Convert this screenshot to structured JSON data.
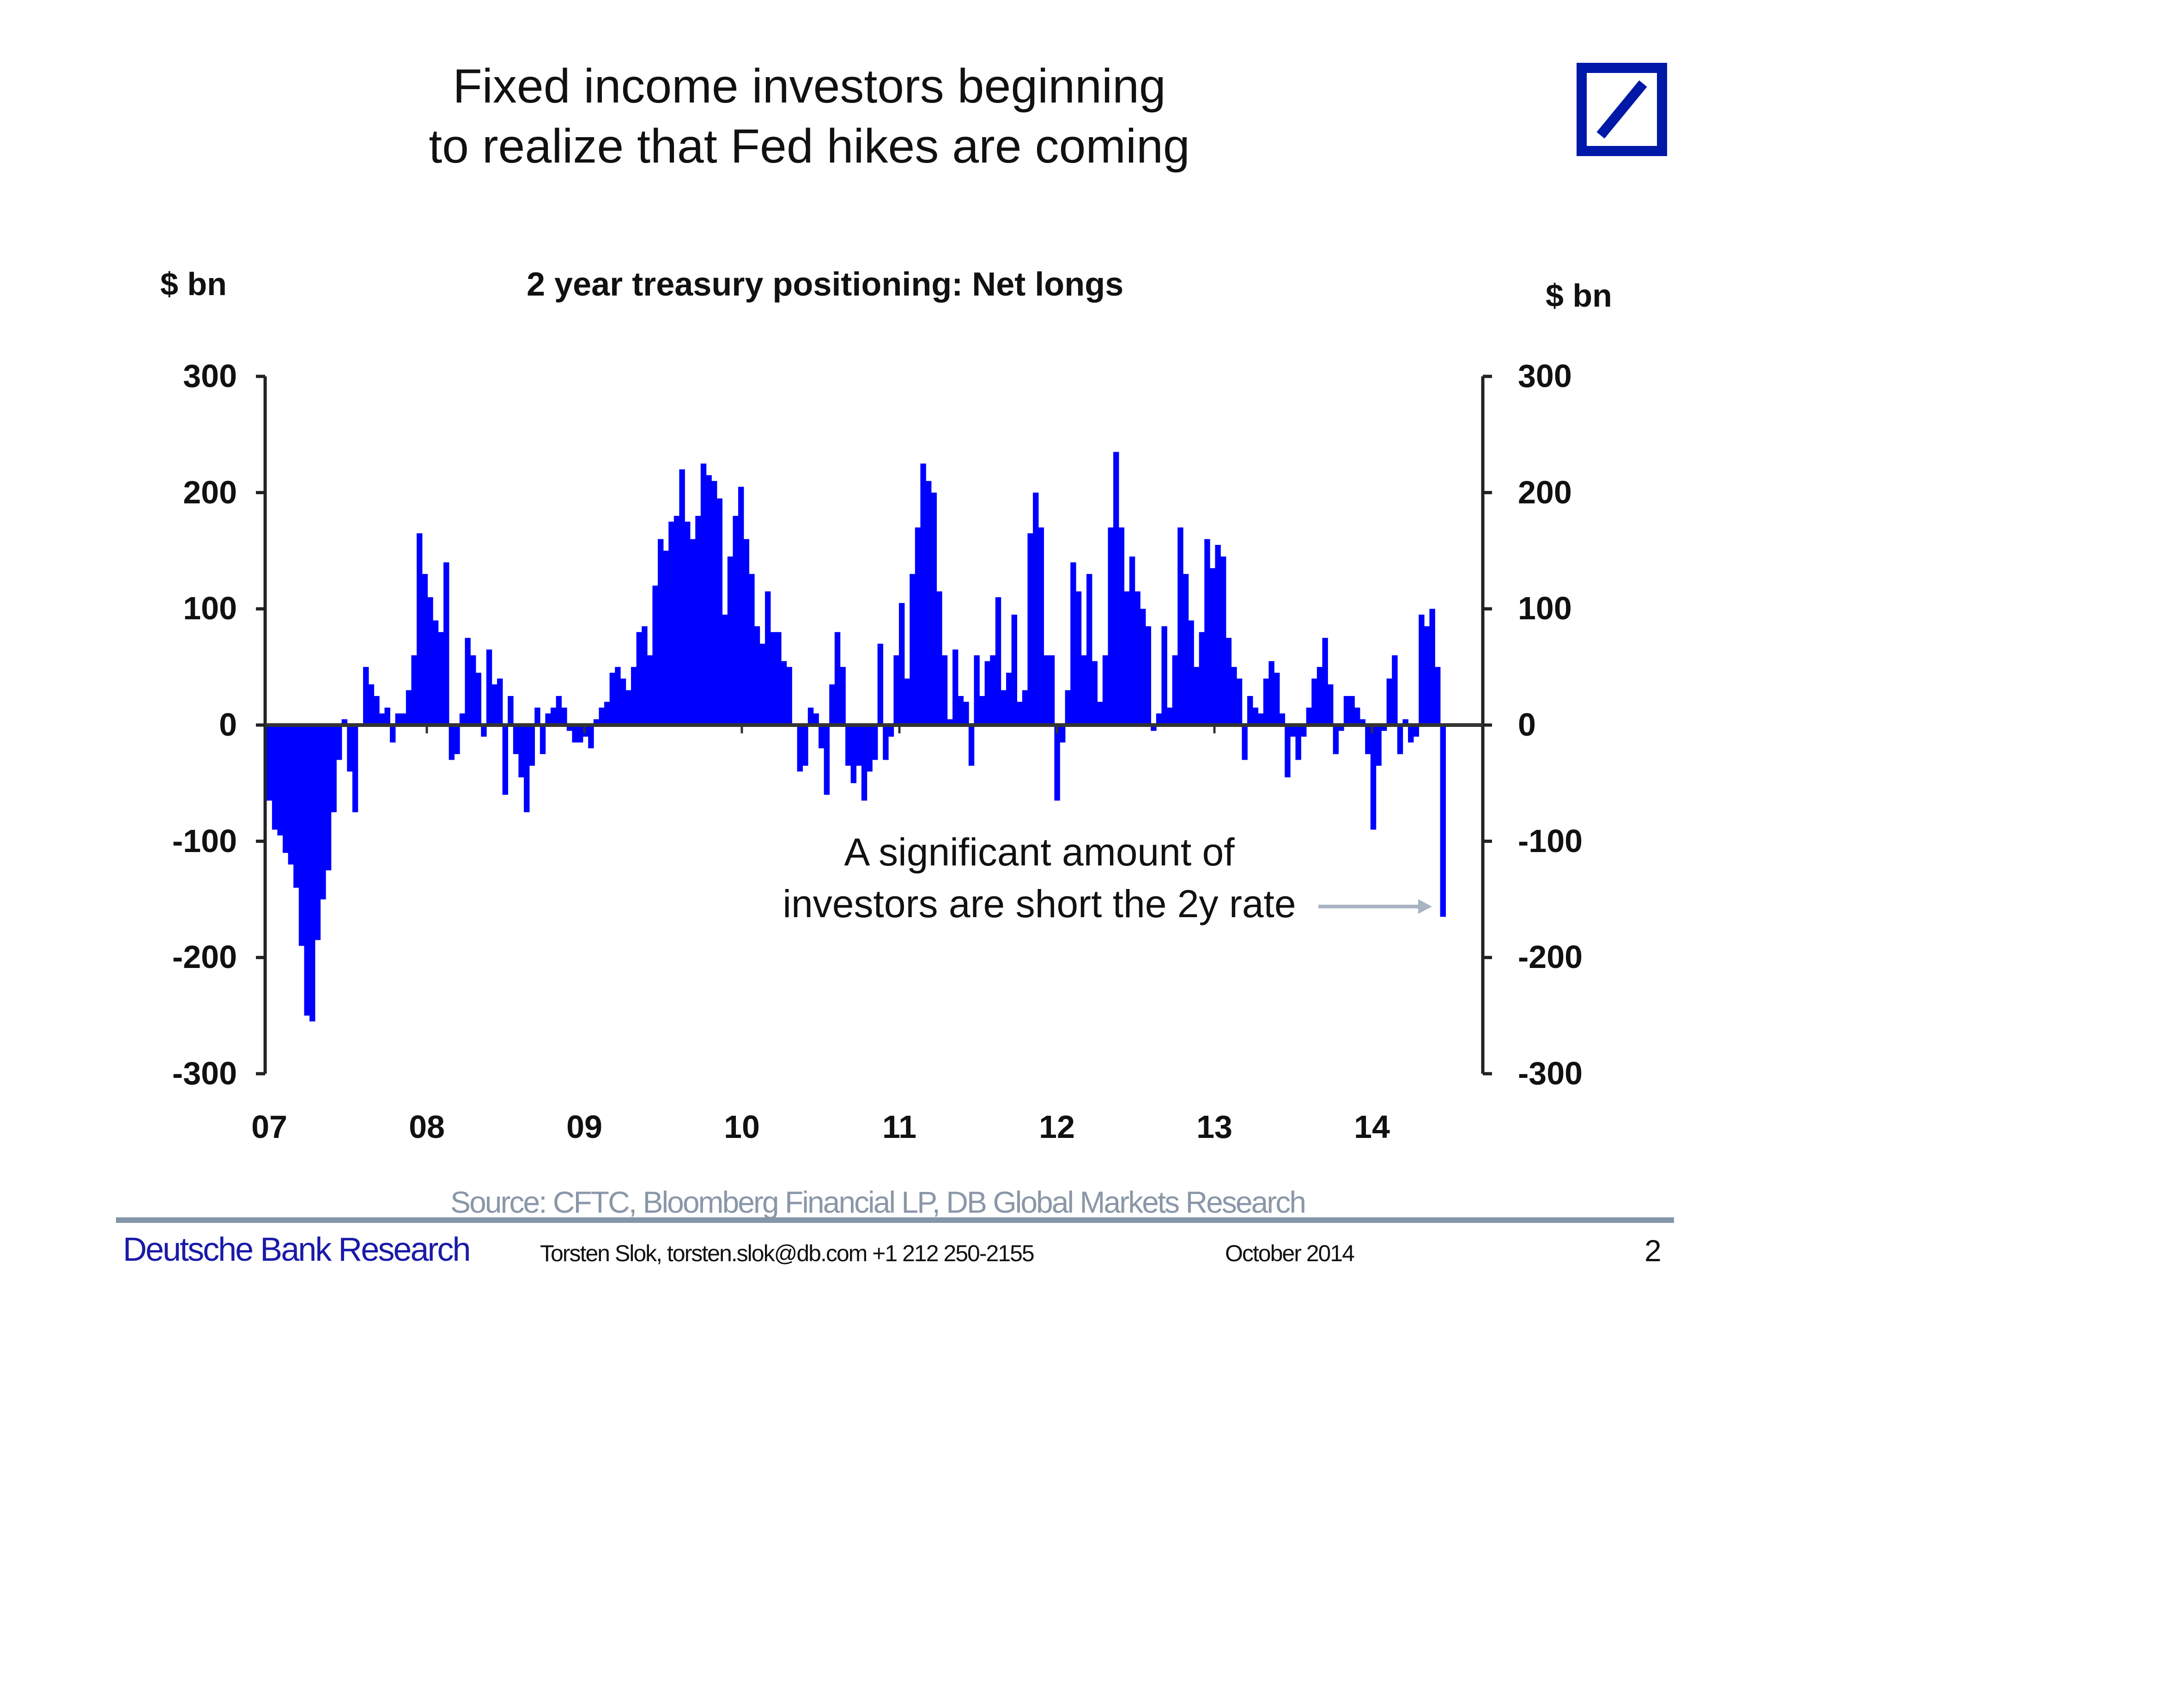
{
  "header": {
    "title_line1": "Fixed income investors beginning",
    "title_line2": "to realize that Fed hikes are coming"
  },
  "logo": {
    "name": "deutsche-bank-logo",
    "color": "#0018a8"
  },
  "chart_data": {
    "type": "bar",
    "title": "2 year treasury positioning: Net longs",
    "ylabel_left": "$ bn",
    "ylabel_right": "$ bn",
    "ylim": [
      -300,
      300
    ],
    "yticks": [
      "300",
      "200",
      "100",
      "0",
      "-100",
      "-200",
      "-300"
    ],
    "ytick_values": [
      300,
      200,
      100,
      0,
      -100,
      -200,
      -300
    ],
    "xticks": [
      "07",
      "08",
      "09",
      "10",
      "11",
      "12",
      "13",
      "14"
    ],
    "xtick_years": [
      2007,
      2008,
      2009,
      2010,
      2011,
      2012,
      2013,
      2014
    ],
    "x_start_year": 2007.0,
    "x_end_year": 2014.45,
    "bar_color": "#0000ff",
    "values": [
      -65,
      -90,
      -95,
      -110,
      -120,
      -140,
      -190,
      -250,
      -255,
      -185,
      -150,
      -125,
      -75,
      -30,
      5,
      -40,
      -75,
      0,
      50,
      35,
      25,
      10,
      15,
      -15,
      10,
      10,
      30,
      60,
      165,
      130,
      110,
      90,
      80,
      140,
      -30,
      -25,
      10,
      75,
      60,
      45,
      -10,
      65,
      35,
      40,
      -60,
      25,
      -25,
      -45,
      -75,
      -35,
      15,
      -25,
      10,
      15,
      25,
      15,
      -5,
      -15,
      -15,
      -10,
      -20,
      5,
      15,
      20,
      45,
      50,
      40,
      30,
      50,
      80,
      85,
      60,
      120,
      160,
      150,
      175,
      180,
      220,
      175,
      160,
      180,
      225,
      215,
      210,
      195,
      95,
      145,
      180,
      205,
      160,
      130,
      85,
      70,
      115,
      80,
      80,
      55,
      50,
      0,
      -40,
      -35,
      15,
      10,
      -20,
      -60,
      35,
      80,
      50,
      -35,
      -50,
      -35,
      -65,
      -40,
      -30,
      70,
      -30,
      -10,
      60,
      105,
      40,
      130,
      170,
      225,
      210,
      200,
      115,
      60,
      5,
      65,
      25,
      20,
      -35,
      60,
      25,
      55,
      60,
      110,
      30,
      45,
      95,
      20,
      30,
      165,
      200,
      170,
      60,
      60,
      -65,
      -15,
      30,
      140,
      115,
      60,
      130,
      55,
      20,
      60,
      170,
      235,
      170,
      115,
      145,
      115,
      100,
      85,
      -5,
      10,
      85,
      15,
      60,
      170,
      130,
      90,
      50,
      80,
      160,
      135,
      155,
      145,
      75,
      50,
      40,
      -30,
      25,
      15,
      10,
      40,
      55,
      45,
      10,
      -45,
      -10,
      -30,
      -10,
      15,
      40,
      50,
      75,
      35,
      -25,
      -5,
      25,
      25,
      15,
      5,
      -25,
      -90,
      -35,
      -5,
      40,
      60,
      -25,
      5,
      -15,
      -10,
      95,
      85,
      100,
      50,
      -165
    ],
    "annotation_line1": "A significant amount of",
    "annotation_line2": "investors are short the 2y rate",
    "source": "Source: CFTC, Bloomberg Financial LP, DB Global Markets Research"
  },
  "footer": {
    "brand": "Deutsche Bank Research",
    "contact": "Torsten Slok, torsten.slok@db.com +1 212 250-2155",
    "date": "October 2014",
    "page": "2"
  }
}
